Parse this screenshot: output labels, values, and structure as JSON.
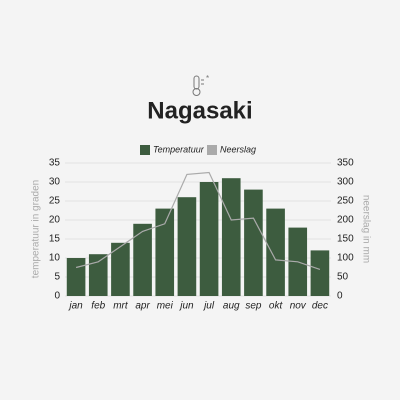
{
  "chart_data": {
    "type": "bar",
    "title": "Nagasaki",
    "categories": [
      "jan",
      "feb",
      "mrt",
      "apr",
      "mei",
      "jun",
      "jul",
      "aug",
      "sep",
      "okt",
      "nov",
      "dec"
    ],
    "series": [
      {
        "name": "Temperatuur",
        "color": "#3d5c3f",
        "values": [
          10,
          11,
          14,
          19,
          23,
          26,
          30,
          31,
          28,
          23,
          18,
          12
        ]
      },
      {
        "name": "Neerslag",
        "color": "#aaaaaa",
        "type": "line",
        "axis": "y2",
        "values": [
          75,
          90,
          130,
          170,
          190,
          320,
          325,
          200,
          205,
          95,
          90,
          70
        ]
      }
    ],
    "ylabel": "temperatuur in graden",
    "y2label": "neerslag in mm",
    "ylim": [
      0,
      35
    ],
    "yticks": [
      0,
      5,
      10,
      15,
      20,
      25,
      30,
      35
    ],
    "y2lim": [
      0,
      350
    ],
    "y2ticks": [
      0,
      50,
      100,
      150,
      200,
      250,
      300,
      350
    ],
    "grid": true
  }
}
